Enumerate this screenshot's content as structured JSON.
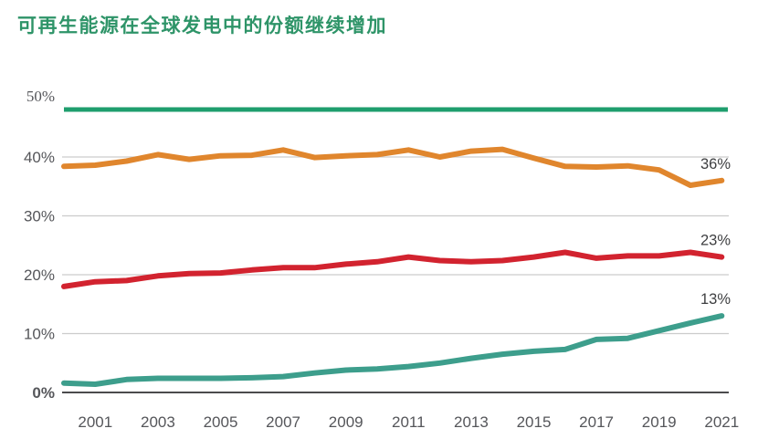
{
  "header": {
    "title": "可再生能源在全球发电中的份额继续增加",
    "title_color": "#2E9468"
  },
  "chart_data": {
    "type": "line",
    "title": "可再生能源在全球发电中的份额继续增加",
    "xlabel": "",
    "ylabel": "",
    "ylim": [
      0,
      50
    ],
    "grid": "horizontal",
    "legend_position": "none",
    "highlight_line": {
      "value": 50,
      "color": "#1F9E6E"
    },
    "axis_color": "#4B4B4D",
    "gridline_color": "#CCCCCC",
    "tick_label_color": "#55565A",
    "end_label_color": "#3E3F41",
    "x": [
      2000,
      2001,
      2002,
      2003,
      2004,
      2005,
      2006,
      2007,
      2008,
      2009,
      2010,
      2011,
      2012,
      2013,
      2014,
      2015,
      2016,
      2017,
      2018,
      2019,
      2020,
      2021
    ],
    "x_ticks": [
      {
        "value": 2001,
        "label": "2001"
      },
      {
        "value": 2003,
        "label": "2003"
      },
      {
        "value": 2005,
        "label": "2005"
      },
      {
        "value": 2007,
        "label": "2007"
      },
      {
        "value": 2009,
        "label": "2009"
      },
      {
        "value": 2011,
        "label": "2011"
      },
      {
        "value": 2013,
        "label": "2013"
      },
      {
        "value": 2015,
        "label": "2015"
      },
      {
        "value": 2017,
        "label": "2017"
      },
      {
        "value": 2019,
        "label": "2019"
      },
      {
        "value": 2021,
        "label": "2021"
      }
    ],
    "y_ticks": [
      {
        "value": 0,
        "label": "0%",
        "bold": true
      },
      {
        "value": 10,
        "label": "10%",
        "bold": false
      },
      {
        "value": 20,
        "label": "20%",
        "bold": false
      },
      {
        "value": 30,
        "label": "30%",
        "bold": false
      },
      {
        "value": 40,
        "label": "40%",
        "bold": false
      },
      {
        "value": 50,
        "label": "50%",
        "bold": false
      }
    ],
    "series": [
      {
        "name": "orange-series",
        "color": "#E0862D",
        "end_label": "36%",
        "values": [
          38.4,
          38.6,
          39.3,
          40.4,
          39.6,
          40.2,
          40.3,
          41.2,
          39.9,
          40.2,
          40.4,
          41.2,
          40.0,
          41.0,
          41.3,
          39.8,
          38.4,
          38.3,
          38.5,
          37.8,
          35.2,
          36.0
        ]
      },
      {
        "name": "red-series",
        "color": "#D2232F",
        "end_label": "23%",
        "values": [
          18.0,
          18.8,
          19.0,
          19.8,
          20.2,
          20.3,
          20.8,
          21.2,
          21.2,
          21.8,
          22.2,
          23.0,
          22.4,
          22.2,
          22.4,
          23.0,
          23.8,
          22.8,
          23.2,
          23.2,
          23.8,
          23.0
        ]
      },
      {
        "name": "teal-series",
        "color": "#3D9E8C",
        "end_label": "13%",
        "values": [
          1.6,
          1.4,
          2.2,
          2.4,
          2.4,
          2.4,
          2.5,
          2.7,
          3.3,
          3.8,
          4.0,
          4.4,
          5.0,
          5.8,
          6.5,
          7.0,
          7.3,
          9.0,
          9.2,
          10.5,
          11.8,
          13.0
        ]
      }
    ]
  }
}
